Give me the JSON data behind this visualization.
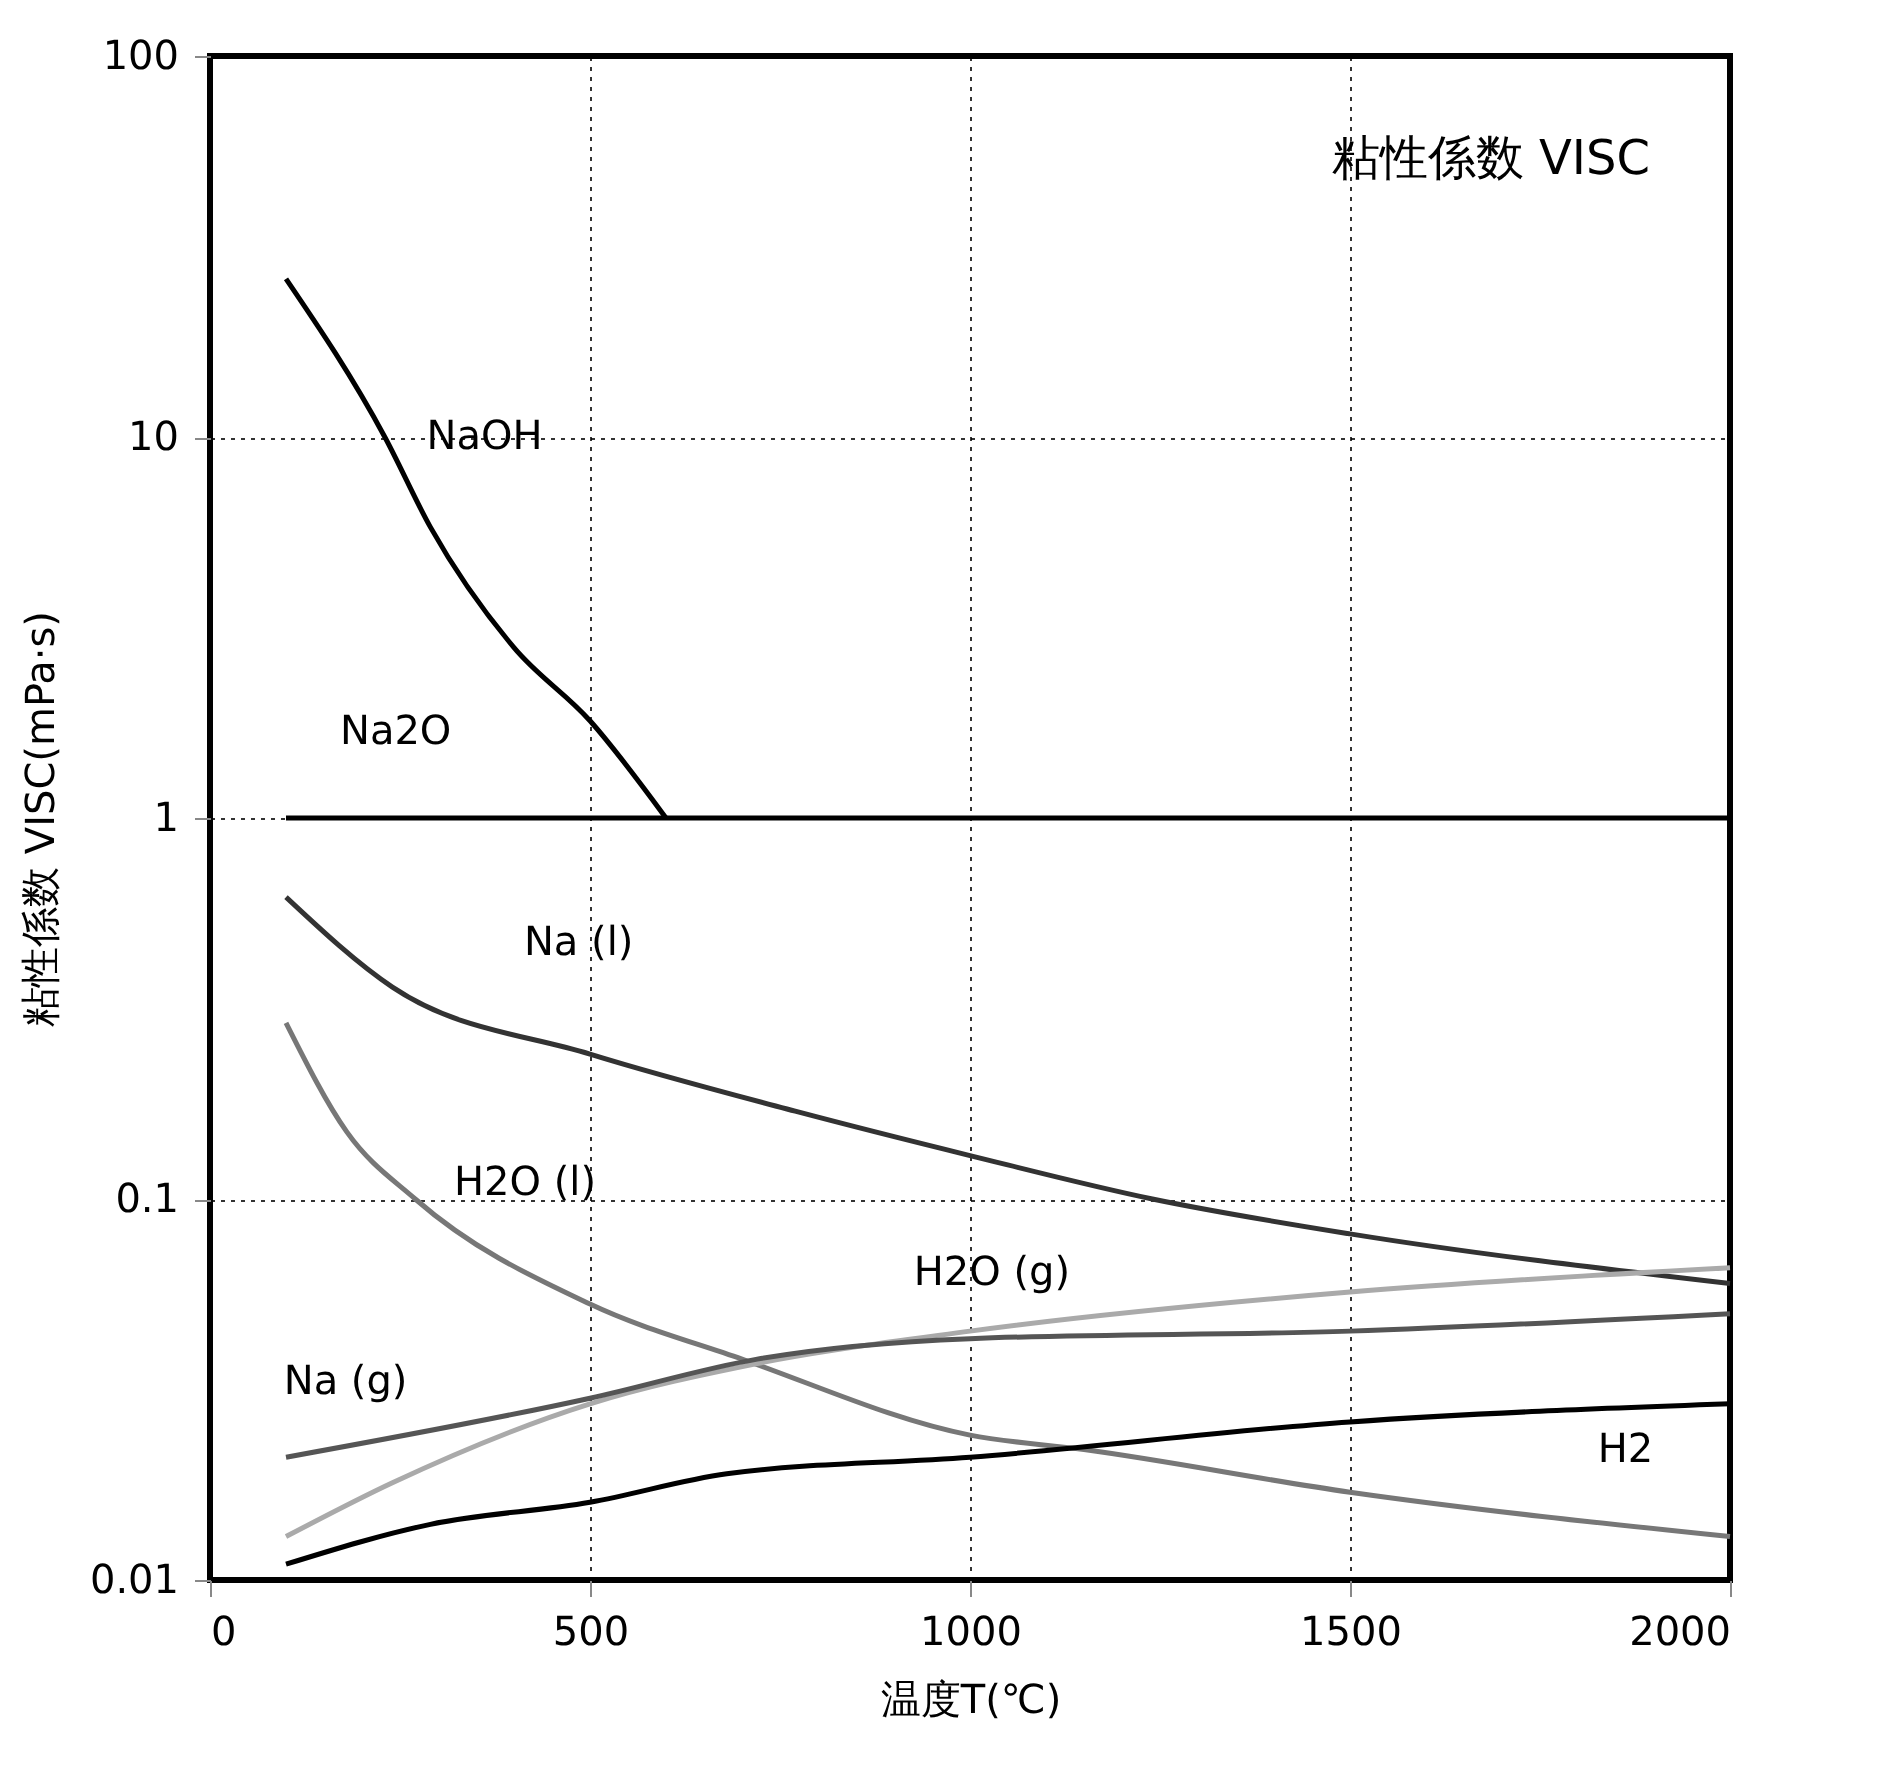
{
  "chart_data": {
    "type": "line",
    "title": "粘性係数 VISC",
    "xlabel": "温度T(℃)",
    "ylabel": "粘性係数 VISC(mPa·s)",
    "log": "y",
    "grid": true,
    "xlim": [
      0,
      2000
    ],
    "xticks": [
      0,
      500,
      1000,
      1500,
      2000
    ],
    "ylim": [
      0.01,
      100
    ],
    "yticks": [
      0.01,
      0.1,
      1,
      10,
      100
    ],
    "series": [
      {
        "name": "NaOH",
        "color": "#000000",
        "x": [
          100,
          230,
          290,
          400,
          500,
          600
        ],
        "values": [
          26,
          10,
          5.8,
          2.8,
          1.8,
          1
        ]
      },
      {
        "name": "Na2O",
        "color": "#000000",
        "x": [
          100,
          2000
        ],
        "values": [
          1,
          1
        ]
      },
      {
        "name": "Na (l)",
        "color": "#333333",
        "x": [
          100,
          240,
          500,
          770,
          1000,
          1240,
          1500,
          2000
        ],
        "values": [
          0.62,
          0.36,
          0.24,
          0.17,
          0.13,
          0.1,
          0.081,
          0.06
        ]
      },
      {
        "name": "H2O (l)",
        "color": "#777777",
        "x": [
          100,
          180,
          270,
          500,
          700,
          1000,
          1150,
          1500,
          2000
        ],
        "values": [
          0.29,
          0.15,
          0.1,
          0.053,
          0.038,
          0.024,
          0.022,
          0.017,
          0.013
        ]
      },
      {
        "name": "H2O (g)",
        "color": "#aaaaaa",
        "x": [
          100,
          240,
          500,
          720,
          1000,
          1500,
          2000
        ],
        "values": [
          0.013,
          0.018,
          0.029,
          0.037,
          0.045,
          0.057,
          0.066
        ]
      },
      {
        "name": "Na (g)",
        "color": "#555555",
        "x": [
          100,
          500,
          720,
          1000,
          1500,
          2000
        ],
        "values": [
          0.021,
          0.03,
          0.038,
          0.043,
          0.045,
          0.05
        ]
      },
      {
        "name": "H2",
        "color": "#000000",
        "x": [
          100,
          290,
          500,
          680,
          1000,
          1500,
          2000
        ],
        "values": [
          0.011,
          0.014,
          0.016,
          0.019,
          0.021,
          0.026,
          0.029
        ]
      }
    ]
  }
}
